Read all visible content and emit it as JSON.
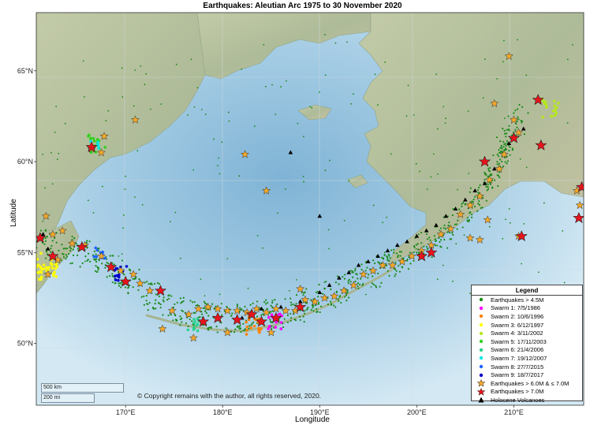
{
  "title": "Earthquakes: Aleutian Arc 1975 to 30 November 2020",
  "xlabel": "Longitude",
  "ylabel": "Latitude",
  "x_ticks": [
    {
      "value": 170,
      "label": "170°E"
    },
    {
      "value": 180,
      "label": "180°E"
    },
    {
      "value": 190,
      "label": "190°E"
    },
    {
      "value": 200,
      "label": "200°E"
    },
    {
      "value": 210,
      "label": "210°E"
    }
  ],
  "y_ticks": [
    {
      "value": 50,
      "label": "50°N"
    },
    {
      "value": 55,
      "label": "55°N"
    },
    {
      "value": 60,
      "label": "60°N"
    },
    {
      "value": 65,
      "label": "65°N"
    }
  ],
  "xlim": [
    160.8,
    217.2
  ],
  "ylim": [
    46.6,
    68.2
  ],
  "colors": {
    "ocean_deep": "#7fb3d5",
    "ocean_shallow": "#c9e3f0",
    "land": "#b9c4a3",
    "eq_green": "#1a8a1a",
    "star_orange": "#f4a72a",
    "star_red": "#e8141b",
    "volcano": "#000000"
  },
  "legend": {
    "title": "Legend",
    "items": [
      {
        "label": "Earthquakes > 4.5M",
        "symbol": "dot",
        "color": "#1a8a1a"
      },
      {
        "label": "Swarm 1: 7/5/1986",
        "symbol": "dot",
        "color": "#ff00ff"
      },
      {
        "label": "Swarm 2: 10/6/1996",
        "symbol": "dot",
        "color": "#ff8000"
      },
      {
        "label": "Swarm 3:  6/12/1997",
        "symbol": "dot",
        "color": "#ffff00"
      },
      {
        "label": "Swarm 4: 3/11/2002",
        "symbol": "dot",
        "color": "#b6e61e"
      },
      {
        "label": "Swarm 5: 17/11/2003",
        "symbol": "dot",
        "color": "#32d21e"
      },
      {
        "label": "Swarm 6: 21/4/2006",
        "symbol": "dot",
        "color": "#28d28c"
      },
      {
        "label": "Swarm 7: 19/12/2007",
        "symbol": "dot",
        "color": "#00e6e6"
      },
      {
        "label": "Swarm 8: 27/7/2015",
        "symbol": "dot",
        "color": "#1e64ff"
      },
      {
        "label": "Swarm 9: 18/7/2017",
        "symbol": "dot",
        "color": "#0000cc"
      },
      {
        "label": "Earthquakes > 6.0M & ≤ 7.0M",
        "symbol": "star",
        "color": "#f4a72a"
      },
      {
        "label": "Earthquakes > 7.0M",
        "symbol": "star",
        "color": "#e8141b"
      },
      {
        "label": "Holocene Volcanoes",
        "symbol": "triangle",
        "color": "#000000"
      }
    ]
  },
  "scalebar": {
    "km_label": "500 km",
    "mi_label": "200 mi"
  },
  "copyright": "© Copyright remains with the author, all rights reserved, 2020.",
  "chart_data": {
    "type": "scatter",
    "title": "Earthquakes: Aleutian Arc 1975 to 30 November 2020",
    "xlabel": "Longitude",
    "ylabel": "Latitude",
    "xlim": [
      160.8,
      217.2
    ],
    "ylim": [
      46.6,
      68.2
    ],
    "grid": true,
    "legend_position": "bottom-right",
    "series": [
      {
        "name": "Earthquakes > 6.0M & ≤ 7.0M",
        "marker": "star",
        "color": "#f4a72a",
        "points": [
          [
            171,
            62.3
          ],
          [
            167.8,
            61.4
          ],
          [
            167.5,
            60.5
          ],
          [
            166.5,
            60.7
          ],
          [
            182.3,
            60.4
          ],
          [
            184.5,
            58.4
          ],
          [
            161.8,
            57.0
          ],
          [
            162.5,
            56.0
          ],
          [
            163.5,
            56.2
          ],
          [
            164.5,
            55.5
          ],
          [
            165.8,
            55.4
          ],
          [
            167.5,
            54.8
          ],
          [
            169.5,
            54.0
          ],
          [
            170.8,
            53.8
          ],
          [
            171.5,
            53.3
          ],
          [
            172.5,
            52.9
          ],
          [
            174.8,
            51.8
          ],
          [
            176.5,
            51.6
          ],
          [
            177.5,
            51.9
          ],
          [
            178.5,
            52.0
          ],
          [
            179.5,
            51.9
          ],
          [
            180.5,
            51.8
          ],
          [
            181.5,
            51.8
          ],
          [
            182.5,
            51.7
          ],
          [
            183.5,
            51.9
          ],
          [
            184.5,
            51.7
          ],
          [
            185.5,
            51.9
          ],
          [
            186.5,
            51.8
          ],
          [
            187.5,
            51.8
          ],
          [
            188.5,
            52.4
          ],
          [
            189.5,
            52.3
          ],
          [
            190.5,
            52.5
          ],
          [
            191.5,
            52.6
          ],
          [
            192.5,
            52.9
          ],
          [
            193.5,
            53.2
          ],
          [
            194.5,
            53.8
          ],
          [
            195.5,
            54.0
          ],
          [
            196.5,
            54.3
          ],
          [
            197.5,
            54.3
          ],
          [
            198.5,
            54.5
          ],
          [
            199.5,
            54.8
          ],
          [
            200.5,
            55.1
          ],
          [
            201.5,
            55.4
          ],
          [
            202.5,
            56.0
          ],
          [
            203.5,
            56.3
          ],
          [
            204.5,
            57.1
          ],
          [
            205.5,
            57.6
          ],
          [
            206.5,
            58.1
          ],
          [
            207.5,
            59.0
          ],
          [
            208.5,
            59.6
          ],
          [
            209.0,
            60.4
          ],
          [
            210.5,
            61.6
          ],
          [
            210.0,
            62.3
          ],
          [
            208.0,
            63.2
          ],
          [
            209.5,
            65.8
          ],
          [
            210.5,
            55.9
          ],
          [
            205.5,
            55.8
          ],
          [
            206.5,
            55.7
          ],
          [
            207.3,
            56.8
          ],
          [
            188.0,
            53.0
          ],
          [
            173.8,
            50.8
          ],
          [
            177.0,
            50.3
          ],
          [
            180.5,
            50.6
          ],
          [
            185.0,
            50.6
          ],
          [
            216.5,
            58.4
          ],
          [
            216.8,
            57.6
          ],
          [
            162.0,
            53.8
          ],
          [
            163.0,
            54.6
          ]
        ]
      },
      {
        "name": "Earthquakes > 7.0M",
        "marker": "star",
        "color": "#e8141b",
        "points": [
          [
            161.2,
            55.8
          ],
          [
            162.5,
            54.8
          ],
          [
            165.5,
            55.3
          ],
          [
            166.5,
            60.8
          ],
          [
            168.5,
            54.2
          ],
          [
            170.0,
            53.4
          ],
          [
            173.6,
            52.9
          ],
          [
            178.0,
            51.2
          ],
          [
            179.5,
            51.4
          ],
          [
            181.5,
            51.3
          ],
          [
            183.0,
            51.6
          ],
          [
            184.0,
            51.2
          ],
          [
            185.5,
            51.4
          ],
          [
            188.0,
            52.0
          ],
          [
            200.5,
            54.8
          ],
          [
            201.5,
            55.0
          ],
          [
            207.0,
            60.0
          ],
          [
            210.0,
            61.3
          ],
          [
            212.5,
            63.4
          ],
          [
            212.8,
            60.9
          ],
          [
            210.8,
            55.9
          ],
          [
            217.0,
            58.6
          ],
          [
            216.7,
            56.9
          ]
        ]
      },
      {
        "name": "Holocene Volcanoes",
        "marker": "triangle",
        "color": "#000000",
        "points": [
          [
            182.0,
            51.4
          ],
          [
            184.0,
            51.9
          ],
          [
            186.0,
            52.0
          ],
          [
            188.0,
            52.3
          ],
          [
            190.0,
            52.8
          ],
          [
            191.0,
            53.2
          ],
          [
            192.0,
            53.6
          ],
          [
            193.0,
            53.9
          ],
          [
            194.0,
            54.3
          ],
          [
            195.0,
            54.5
          ],
          [
            196.0,
            54.8
          ],
          [
            197.0,
            55.1
          ],
          [
            198.0,
            55.4
          ],
          [
            199.0,
            55.6
          ],
          [
            200.0,
            55.9
          ],
          [
            201.0,
            56.2
          ],
          [
            202.0,
            56.5
          ],
          [
            203.0,
            57.0
          ],
          [
            204.0,
            57.4
          ],
          [
            205.0,
            57.9
          ],
          [
            206.0,
            58.4
          ],
          [
            207.0,
            58.8
          ],
          [
            208.0,
            59.6
          ],
          [
            209.0,
            60.4
          ],
          [
            209.5,
            61.0
          ],
          [
            211.0,
            61.8
          ],
          [
            190.0,
            57.0
          ],
          [
            187.0,
            60.5
          ],
          [
            161.5,
            56.0
          ],
          [
            162.0,
            55.2
          ]
        ]
      }
    ]
  }
}
